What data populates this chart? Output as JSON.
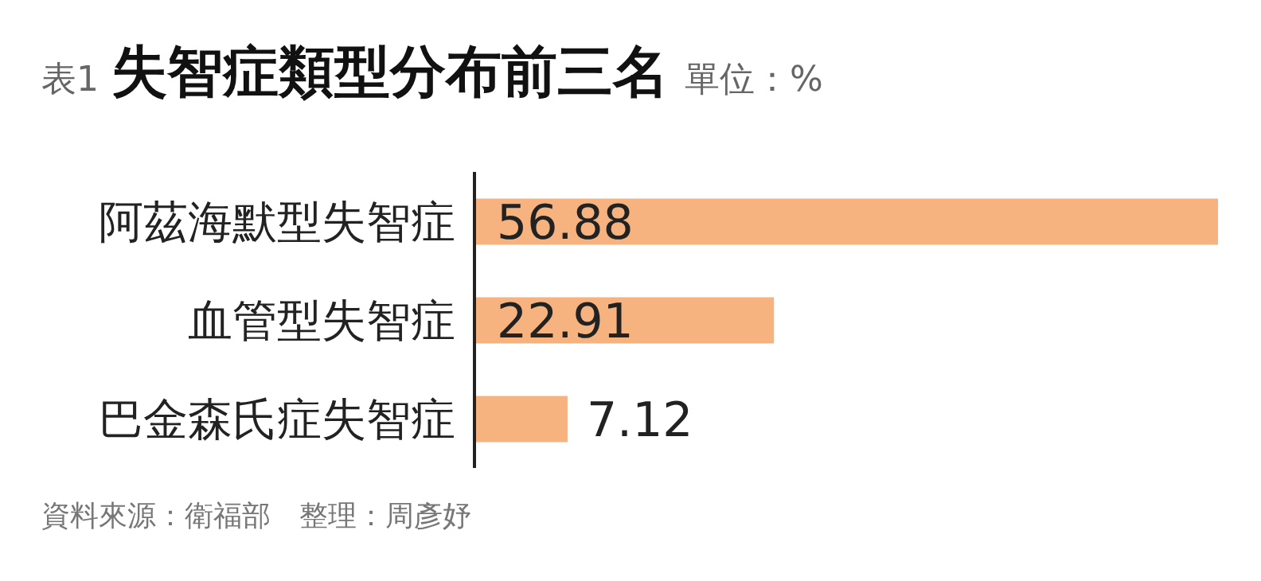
{
  "chart_data": {
    "type": "bar",
    "orientation": "horizontal",
    "title": "失智症類型分布前三名",
    "subtitle": "單位：%",
    "annotations": [
      "表1",
      "資料來源：衛福部　整理：周彥妤"
    ],
    "categories": [
      "阿茲海默型失智症",
      "血管型失智症",
      "巴金森氏症失智症"
    ],
    "values": [
      56.88,
      22.91,
      7.12
    ],
    "color": "#f6b37f",
    "data_labels": true
  }
}
